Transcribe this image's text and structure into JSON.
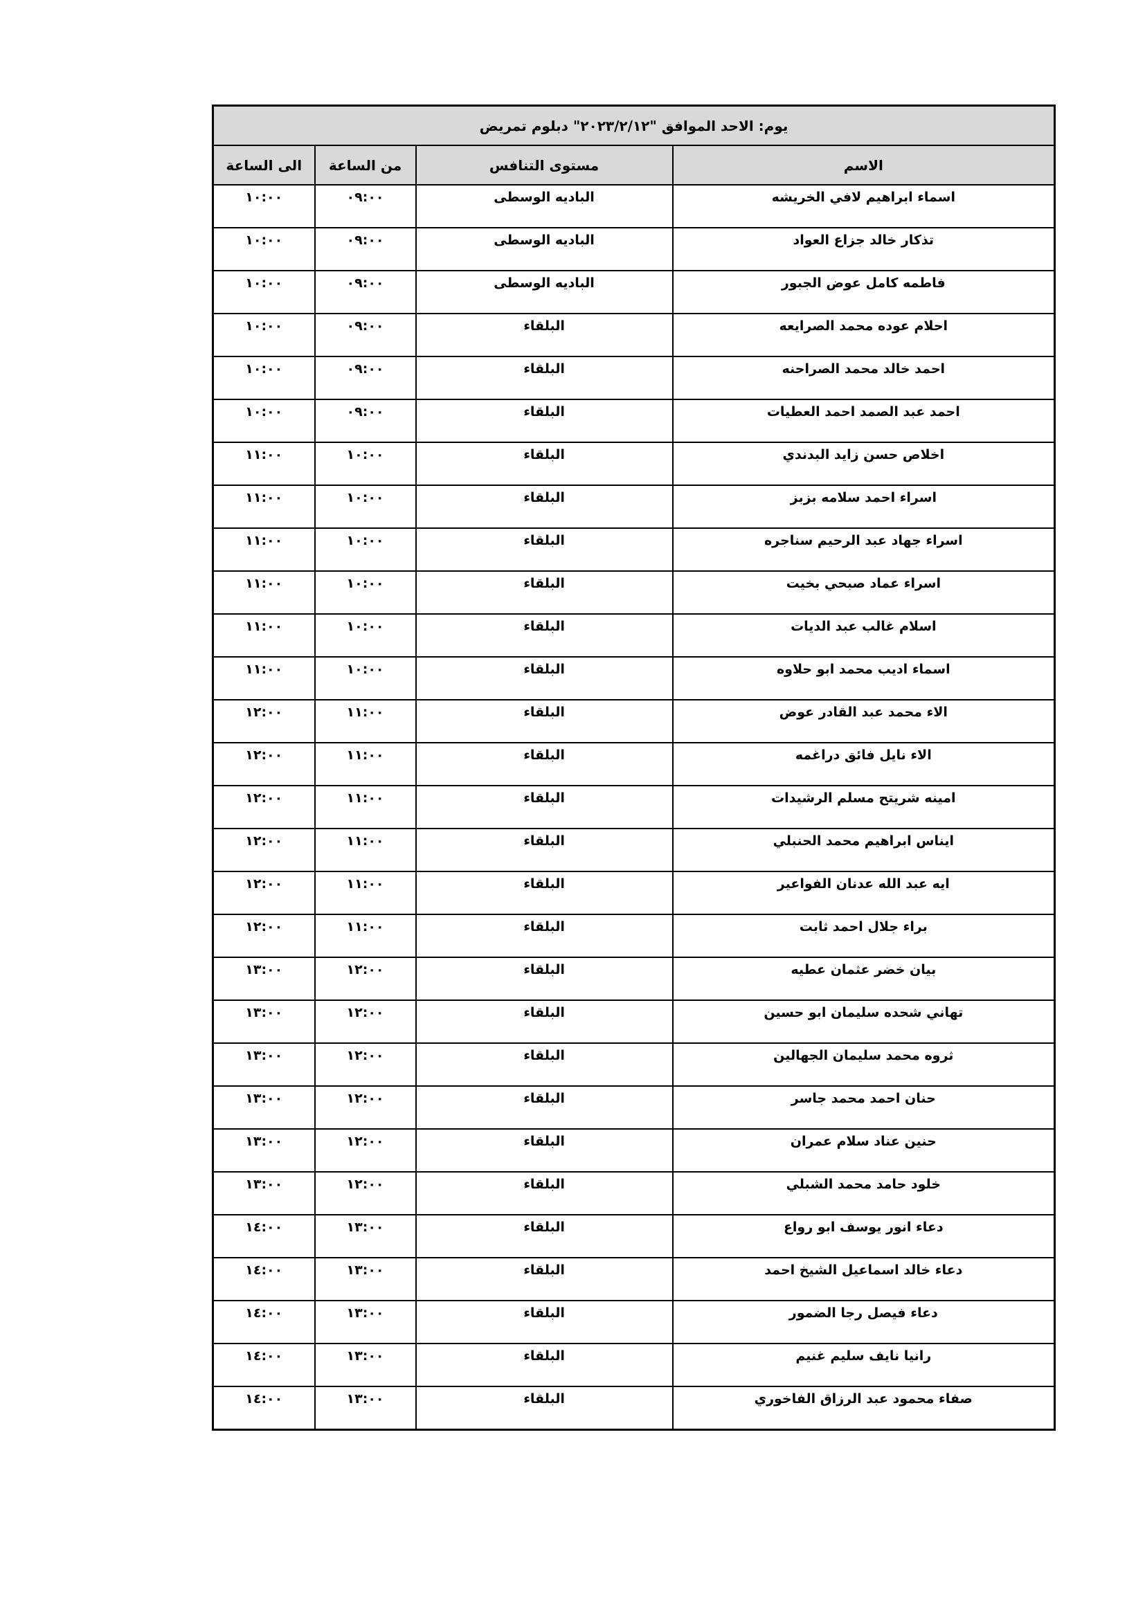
{
  "title": "يوم: الاحد  الموافق \"٢٠٢٣/٢/١٢\" دبلوم تمريض",
  "headers": {
    "name": "الاسم",
    "level": "مستوى التنافس",
    "from": "من الساعة",
    "to": "الى الساعة"
  },
  "rows": [
    {
      "name": "اسماء ابراهيم لافي الخريشه",
      "level": "الباديه الوسطى",
      "from": "٠٩:٠٠",
      "to": "١٠:٠٠"
    },
    {
      "name": "تذكار خالد جزاع العواد",
      "level": "الباديه الوسطى",
      "from": "٠٩:٠٠",
      "to": "١٠:٠٠"
    },
    {
      "name": "فاطمه كامل عوض الجبور",
      "level": "الباديه الوسطى",
      "from": "٠٩:٠٠",
      "to": "١٠:٠٠"
    },
    {
      "name": "احلام عوده محمد الصرايعه",
      "level": "البلقاء",
      "from": "٠٩:٠٠",
      "to": "١٠:٠٠"
    },
    {
      "name": "احمد خالد محمد الصراحنه",
      "level": "البلقاء",
      "from": "٠٩:٠٠",
      "to": "١٠:٠٠"
    },
    {
      "name": "احمد عبد الصمد احمد العطيات",
      "level": "البلقاء",
      "from": "٠٩:٠٠",
      "to": "١٠:٠٠"
    },
    {
      "name": "اخلاص حسن زايد البدندي",
      "level": "البلقاء",
      "from": "١٠:٠٠",
      "to": "١١:٠٠"
    },
    {
      "name": "اسراء احمد سلامه بزبز",
      "level": "البلقاء",
      "from": "١٠:٠٠",
      "to": "١١:٠٠"
    },
    {
      "name": "اسراء جهاد عبد الرحيم سناجره",
      "level": "البلقاء",
      "from": "١٠:٠٠",
      "to": "١١:٠٠"
    },
    {
      "name": "اسراء عماد صبحي بخيت",
      "level": "البلقاء",
      "from": "١٠:٠٠",
      "to": "١١:٠٠"
    },
    {
      "name": "اسلام غالب عبد الديات",
      "level": "البلقاء",
      "from": "١٠:٠٠",
      "to": "١١:٠٠"
    },
    {
      "name": "اسماء اديب محمد ابو حلاوه",
      "level": "البلقاء",
      "from": "١٠:٠٠",
      "to": "١١:٠٠"
    },
    {
      "name": "الاء محمد عبد القادر عوض",
      "level": "البلقاء",
      "from": "١١:٠٠",
      "to": "١٢:٠٠"
    },
    {
      "name": "الاء نايل فائق دراغمه",
      "level": "البلقاء",
      "from": "١١:٠٠",
      "to": "١٢:٠٠"
    },
    {
      "name": "امينه شريتح مسلم الرشيدات",
      "level": "البلقاء",
      "from": "١١:٠٠",
      "to": "١٢:٠٠"
    },
    {
      "name": "ايناس ابراهيم محمد الحنبلي",
      "level": "البلقاء",
      "from": "١١:٠٠",
      "to": "١٢:٠٠"
    },
    {
      "name": "ايه عبد الله عدنان الفواعير",
      "level": "البلقاء",
      "from": "١١:٠٠",
      "to": "١٢:٠٠"
    },
    {
      "name": "براء جلال احمد ثابت",
      "level": "البلقاء",
      "from": "١١:٠٠",
      "to": "١٢:٠٠"
    },
    {
      "name": "بيان خضر عثمان عطيه",
      "level": "البلقاء",
      "from": "١٢:٠٠",
      "to": "١٣:٠٠"
    },
    {
      "name": "تهاني شحده سليمان ابو حسين",
      "level": "البلقاء",
      "from": "١٢:٠٠",
      "to": "١٣:٠٠"
    },
    {
      "name": "ثروه محمد سليمان الجهالين",
      "level": "البلقاء",
      "from": "١٢:٠٠",
      "to": "١٣:٠٠"
    },
    {
      "name": "حنان احمد محمد جاسر",
      "level": "البلقاء",
      "from": "١٢:٠٠",
      "to": "١٣:٠٠"
    },
    {
      "name": "حنين عناد سلام عمران",
      "level": "البلقاء",
      "from": "١٢:٠٠",
      "to": "١٣:٠٠"
    },
    {
      "name": "خلود حامد محمد الشبلي",
      "level": "البلقاء",
      "from": "١٢:٠٠",
      "to": "١٣:٠٠"
    },
    {
      "name": "دعاء انور يوسف ابو رواع",
      "level": "البلقاء",
      "from": "١٣:٠٠",
      "to": "١٤:٠٠"
    },
    {
      "name": "دعاء خالد اسماعيل الشيخ احمد",
      "level": "البلقاء",
      "from": "١٣:٠٠",
      "to": "١٤:٠٠"
    },
    {
      "name": "دعاء فيصل رجا الضمور",
      "level": "البلقاء",
      "from": "١٣:٠٠",
      "to": "١٤:٠٠"
    },
    {
      "name": "رانيا نايف سليم غنيم",
      "level": "البلقاء",
      "from": "١٣:٠٠",
      "to": "١٤:٠٠"
    },
    {
      "name": "صفاء محمود عبد الرزاق الفاخوري",
      "level": "البلقاء",
      "from": "١٣:٠٠",
      "to": "١٤:٠٠"
    }
  ]
}
